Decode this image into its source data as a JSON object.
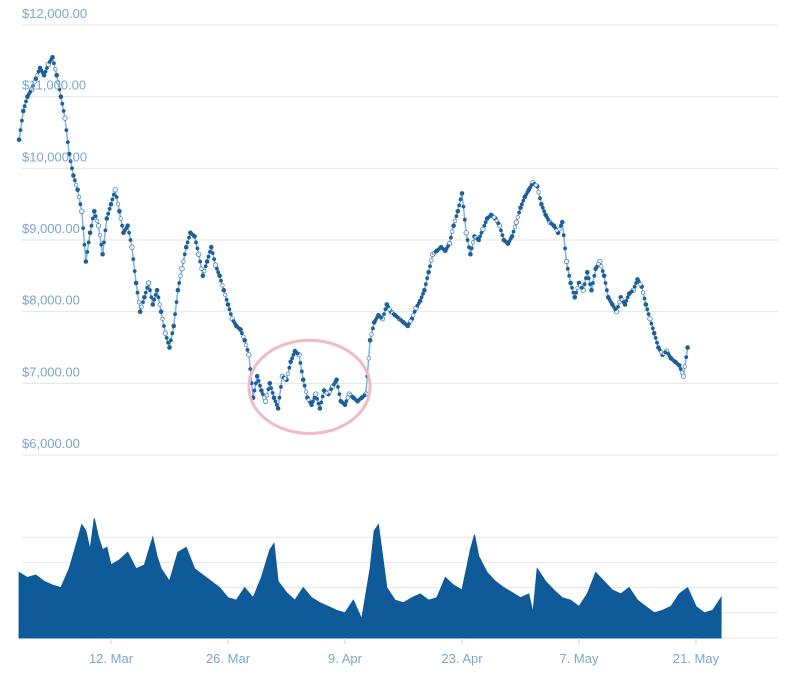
{
  "chart_data": [
    {
      "id": "price",
      "type": "line",
      "title": "",
      "xlabel": "",
      "ylabel": "",
      "ylim": [
        6000,
        12000
      ],
      "y_ticks": [
        {
          "value": 12000,
          "label": "$12,000.00"
        },
        {
          "value": 11000,
          "label": "$11,000.00"
        },
        {
          "value": 10000,
          "label": "$10,000.00"
        },
        {
          "value": 9000,
          "label": "$9,000.00"
        },
        {
          "value": 8000,
          "label": "$8,000.00"
        },
        {
          "value": 7000,
          "label": "$7,000.00"
        },
        {
          "value": 6000,
          "label": "$6,000.00"
        }
      ],
      "x_day_range": [
        1,
        81
      ],
      "x_ticks": [
        {
          "day": 12,
          "label": "12. Mar"
        },
        {
          "day": 26,
          "label": "26. Mar"
        },
        {
          "day": 40,
          "label": "9. Apr"
        },
        {
          "day": 54,
          "label": "23. Apr"
        },
        {
          "day": 68,
          "label": "7. May"
        },
        {
          "day": 82,
          "label": "21. May"
        }
      ],
      "grid": true,
      "series": [
        {
          "name": "price",
          "points": [
            [
              1,
              10400
            ],
            [
              1.5,
              10800
            ],
            [
              2,
              11000
            ],
            [
              2.5,
              11100
            ],
            [
              3,
              11250
            ],
            [
              3.5,
              11400
            ],
            [
              4,
              11300
            ],
            [
              4.5,
              11450
            ],
            [
              5,
              11550
            ],
            [
              5.5,
              11300
            ],
            [
              6,
              11000
            ],
            [
              6.5,
              10700
            ],
            [
              7,
              10200
            ],
            [
              7.5,
              9900
            ],
            [
              8,
              9700
            ],
            [
              8.5,
              9400
            ],
            [
              9,
              8700
            ],
            [
              9.5,
              9100
            ],
            [
              10,
              9400
            ],
            [
              10.5,
              9200
            ],
            [
              11,
              8800
            ],
            [
              11.5,
              9300
            ],
            [
              12,
              9500
            ],
            [
              12.5,
              9700
            ],
            [
              13,
              9400
            ],
            [
              13.5,
              9100
            ],
            [
              14,
              9200
            ],
            [
              14.5,
              8900
            ],
            [
              15,
              8400
            ],
            [
              15.5,
              8000
            ],
            [
              16,
              8200
            ],
            [
              16.5,
              8400
            ],
            [
              17,
              8100
            ],
            [
              17.5,
              8300
            ],
            [
              18,
              8000
            ],
            [
              18.5,
              7700
            ],
            [
              19,
              7500
            ],
            [
              19.5,
              7800
            ],
            [
              20,
              8300
            ],
            [
              20.5,
              8600
            ],
            [
              21,
              8900
            ],
            [
              21.5,
              9100
            ],
            [
              22,
              9050
            ],
            [
              22.5,
              8800
            ],
            [
              23,
              8500
            ],
            [
              23.5,
              8700
            ],
            [
              24,
              8900
            ],
            [
              24.5,
              8650
            ],
            [
              25,
              8500
            ],
            [
              25.5,
              8300
            ],
            [
              26,
              8100
            ],
            [
              26.5,
              7900
            ],
            [
              27,
              7800
            ],
            [
              27.5,
              7750
            ],
            [
              28,
              7600
            ],
            [
              28.5,
              7400
            ],
            [
              29,
              6800
            ],
            [
              29.5,
              7100
            ],
            [
              30,
              6900
            ],
            [
              30.5,
              6750
            ],
            [
              31,
              7000
            ],
            [
              31.5,
              6800
            ],
            [
              32,
              6650
            ],
            [
              32.5,
              7100
            ],
            [
              33,
              7050
            ],
            [
              33.5,
              7300
            ],
            [
              34,
              7450
            ],
            [
              34.5,
              7400
            ],
            [
              35,
              7050
            ],
            [
              35.5,
              6800
            ],
            [
              36,
              6700
            ],
            [
              36.5,
              6850
            ],
            [
              37,
              6650
            ],
            [
              37.5,
              6900
            ],
            [
              38,
              6850
            ],
            [
              38.5,
              6950
            ],
            [
              39,
              7050
            ],
            [
              39.5,
              6750
            ],
            [
              40,
              6700
            ],
            [
              40.5,
              6850
            ],
            [
              41,
              6800
            ],
            [
              41.5,
              6750
            ],
            [
              42,
              6800
            ],
            [
              42.5,
              6850
            ],
            [
              43,
              7600
            ],
            [
              43.5,
              7850
            ],
            [
              44,
              7950
            ],
            [
              44.5,
              7900
            ],
            [
              45,
              8100
            ],
            [
              45.5,
              8000
            ],
            [
              46,
              7950
            ],
            [
              46.5,
              7900
            ],
            [
              47,
              7850
            ],
            [
              47.5,
              7800
            ],
            [
              48,
              7900
            ],
            [
              48.5,
              8050
            ],
            [
              49,
              8150
            ],
            [
              49.5,
              8300
            ],
            [
              50,
              8550
            ],
            [
              50.5,
              8800
            ],
            [
              51,
              8850
            ],
            [
              51.5,
              8900
            ],
            [
              52,
              8850
            ],
            [
              52.5,
              8950
            ],
            [
              53,
              9200
            ],
            [
              53.5,
              9400
            ],
            [
              54,
              9650
            ],
            [
              54.5,
              9100
            ],
            [
              55,
              8800
            ],
            [
              55.5,
              9050
            ],
            [
              56,
              9000
            ],
            [
              56.5,
              9150
            ],
            [
              57,
              9300
            ],
            [
              57.5,
              9350
            ],
            [
              58,
              9300
            ],
            [
              58.5,
              9200
            ],
            [
              59,
              9000
            ],
            [
              59.5,
              8950
            ],
            [
              60,
              9050
            ],
            [
              60.5,
              9250
            ],
            [
              61,
              9450
            ],
            [
              61.5,
              9600
            ],
            [
              62,
              9700
            ],
            [
              62.5,
              9800
            ],
            [
              63,
              9750
            ],
            [
              63.5,
              9500
            ],
            [
              64,
              9350
            ],
            [
              64.5,
              9250
            ],
            [
              65,
              9200
            ],
            [
              65.5,
              9100
            ],
            [
              66,
              9250
            ],
            [
              66.5,
              8700
            ],
            [
              67,
              8400
            ],
            [
              67.5,
              8200
            ],
            [
              68,
              8400
            ],
            [
              68.5,
              8300
            ],
            [
              69,
              8550
            ],
            [
              69.5,
              8300
            ],
            [
              70,
              8600
            ],
            [
              70.5,
              8700
            ],
            [
              71,
              8500
            ],
            [
              71.5,
              8200
            ],
            [
              72,
              8100
            ],
            [
              72.5,
              8000
            ],
            [
              73,
              8200
            ],
            [
              73.5,
              8100
            ],
            [
              74,
              8250
            ],
            [
              74.5,
              8300
            ],
            [
              75,
              8450
            ],
            [
              75.5,
              8350
            ],
            [
              76,
              8100
            ],
            [
              76.5,
              7900
            ],
            [
              77,
              7700
            ],
            [
              77.5,
              7500
            ],
            [
              78,
              7400
            ],
            [
              78.5,
              7450
            ],
            [
              79,
              7350
            ],
            [
              79.5,
              7300
            ],
            [
              80,
              7250
            ],
            [
              80.5,
              7100
            ],
            [
              81,
              7500
            ]
          ]
        }
      ],
      "annotations": [
        {
          "shape": "ellipse",
          "color": "#f2b8c6",
          "day_range": [
            28.5,
            43
          ],
          "value_range": [
            6300,
            7600
          ]
        }
      ]
    },
    {
      "id": "volume",
      "type": "area",
      "title": "",
      "xlabel": "",
      "ylabel": "",
      "ylim": [
        0,
        100
      ],
      "grid": true,
      "grid_values": [
        0,
        20,
        40,
        60,
        80
      ],
      "series": [
        {
          "name": "volume",
          "points": [
            [
              1,
              52
            ],
            [
              2,
              48
            ],
            [
              3,
              50
            ],
            [
              4,
              45
            ],
            [
              5,
              42
            ],
            [
              6,
              40
            ],
            [
              7,
              55
            ],
            [
              8,
              78
            ],
            [
              8.5,
              90
            ],
            [
              9,
              85
            ],
            [
              9.5,
              70
            ],
            [
              10,
              95
            ],
            [
              10.5,
              80
            ],
            [
              11,
              70
            ],
            [
              11.5,
              72
            ],
            [
              12,
              58
            ],
            [
              13,
              62
            ],
            [
              14,
              68
            ],
            [
              15,
              55
            ],
            [
              16,
              58
            ],
            [
              17,
              80
            ],
            [
              17.5,
              65
            ],
            [
              18,
              55
            ],
            [
              19,
              45
            ],
            [
              20,
              68
            ],
            [
              21,
              72
            ],
            [
              22,
              55
            ],
            [
              23,
              50
            ],
            [
              24,
              45
            ],
            [
              25,
              40
            ],
            [
              26,
              32
            ],
            [
              27,
              30
            ],
            [
              28,
              40
            ],
            [
              29,
              32
            ],
            [
              30,
              48
            ],
            [
              31,
              70
            ],
            [
              31.5,
              75
            ],
            [
              32,
              45
            ],
            [
              33,
              36
            ],
            [
              34,
              30
            ],
            [
              35,
              40
            ],
            [
              36,
              32
            ],
            [
              37,
              28
            ],
            [
              38,
              25
            ],
            [
              39,
              22
            ],
            [
              40,
              20
            ],
            [
              41,
              30
            ],
            [
              42,
              15
            ],
            [
              43,
              55
            ],
            [
              43.5,
              85
            ],
            [
              44,
              90
            ],
            [
              44.5,
              65
            ],
            [
              45,
              40
            ],
            [
              46,
              30
            ],
            [
              47,
              28
            ],
            [
              48,
              32
            ],
            [
              49,
              35
            ],
            [
              50,
              30
            ],
            [
              51,
              32
            ],
            [
              52,
              48
            ],
            [
              53,
              42
            ],
            [
              54,
              38
            ],
            [
              55,
              70
            ],
            [
              55.5,
              82
            ],
            [
              56,
              65
            ],
            [
              57,
              52
            ],
            [
              58,
              45
            ],
            [
              59,
              40
            ],
            [
              60,
              36
            ],
            [
              61,
              32
            ],
            [
              62,
              35
            ],
            [
              62.5,
              20
            ],
            [
              63,
              55
            ],
            [
              64,
              45
            ],
            [
              65,
              38
            ],
            [
              66,
              32
            ],
            [
              67,
              30
            ],
            [
              68,
              25
            ],
            [
              69,
              35
            ],
            [
              70,
              52
            ],
            [
              71,
              45
            ],
            [
              72,
              38
            ],
            [
              73,
              35
            ],
            [
              74,
              40
            ],
            [
              75,
              30
            ],
            [
              76,
              25
            ],
            [
              77,
              20
            ],
            [
              78,
              22
            ],
            [
              79,
              25
            ],
            [
              80,
              35
            ],
            [
              81,
              40
            ],
            [
              82,
              25
            ],
            [
              83,
              20
            ],
            [
              84,
              22
            ],
            [
              85,
              32
            ]
          ]
        }
      ]
    }
  ],
  "colors": {
    "line": "#7fb3e0",
    "marker_fill": "#1d5f98",
    "marker_alt": "#e8f0f8",
    "area_fill": "#0f5a98",
    "grid": "#e6e6e6",
    "axis_text": "#7aa6cf",
    "ellipse": "#f2b8c6"
  }
}
